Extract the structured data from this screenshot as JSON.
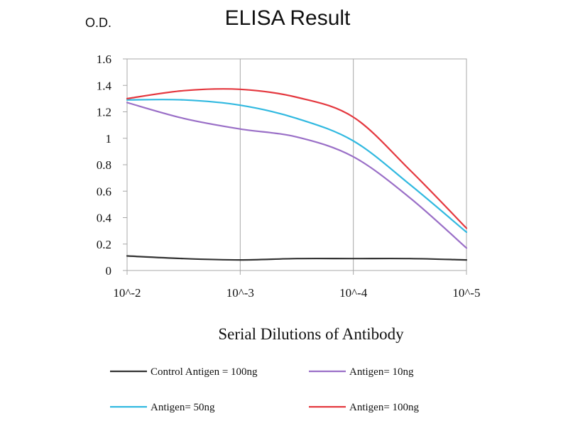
{
  "chart_data": {
    "type": "line",
    "title": "ELISA Result",
    "ylabel": "O.D.",
    "xlabel": "Serial Dilutions of Antibody",
    "categories": [
      "10^-2",
      "10^-3",
      "10^-4",
      "10^-5"
    ],
    "x": [
      0,
      0.5,
      1,
      1.5,
      2,
      2.5,
      3
    ],
    "ylim": [
      0,
      1.6
    ],
    "yticks": [
      "0",
      "0.2",
      "0.4",
      "0.6",
      "0.8",
      "1",
      "1.2",
      "1.4",
      "1.6"
    ],
    "grid": "vertical",
    "legend_position": "bottom",
    "series": [
      {
        "name": "Control Antigen = 100ng",
        "color": "#333333",
        "values": [
          0.11,
          0.09,
          0.08,
          0.09,
          0.09,
          0.09,
          0.08
        ]
      },
      {
        "name": "Antigen= 10ng",
        "color": "#9a6fc7",
        "values": [
          1.27,
          1.15,
          1.07,
          1.01,
          0.86,
          0.55,
          0.17
        ]
      },
      {
        "name": "Antigen= 50ng",
        "color": "#31b9e0",
        "values": [
          1.29,
          1.29,
          1.25,
          1.15,
          0.98,
          0.65,
          0.29
        ]
      },
      {
        "name": "Antigen= 100ng",
        "color": "#e4383f",
        "values": [
          1.3,
          1.36,
          1.37,
          1.31,
          1.16,
          0.76,
          0.32
        ]
      }
    ]
  }
}
